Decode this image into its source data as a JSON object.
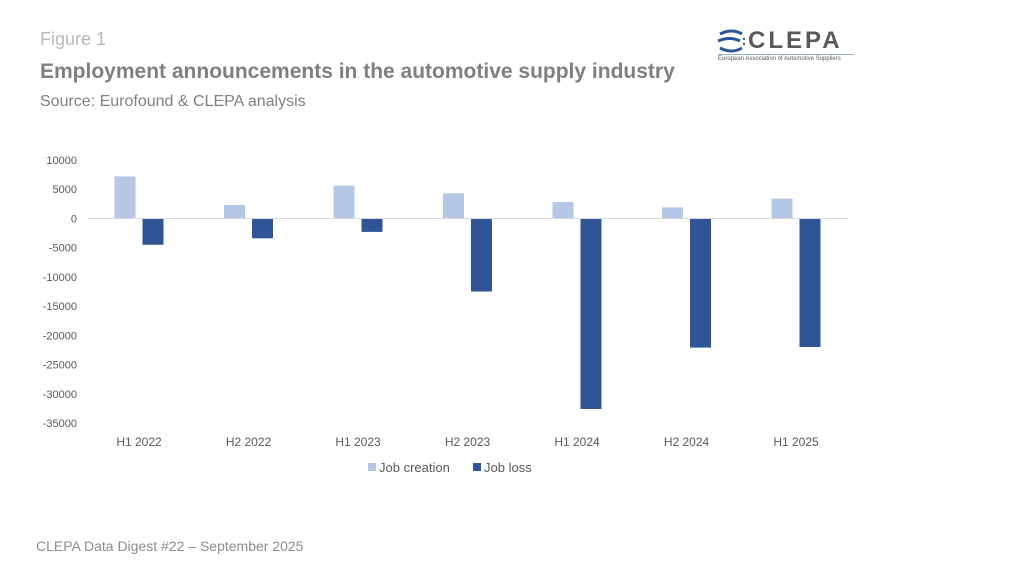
{
  "header": {
    "figure_label": "Figure 1",
    "title": "Employment announcements in the automotive supply industry",
    "subtitle": "Source: Eurofound & CLEPA analysis"
  },
  "logo": {
    "name": "CLEPA",
    "tagline": "European Association of Automotive Suppliers",
    "colors": {
      "text": "#595959",
      "accent": "#2e5597"
    }
  },
  "footer": "CLEPA Data Digest #22 – September 2025",
  "chart_data": {
    "type": "bar",
    "title": "Employment announcements in the automotive supply industry",
    "xlabel": "",
    "ylabel": "",
    "categories": [
      "H1 2022",
      "H2 2022",
      "H1 2023",
      "H2 2023",
      "H1 2024",
      "H2 2024",
      "H1 2025"
    ],
    "series": [
      {
        "name": "Job creation",
        "color": "#b4c7e7",
        "values": [
          7200,
          2300,
          5600,
          4300,
          2800,
          1900,
          3400
        ]
      },
      {
        "name": "Job loss",
        "color": "#2f5597",
        "values": [
          -4500,
          -3400,
          -2300,
          -12500,
          -32600,
          -22100,
          -22000
        ]
      }
    ],
    "ylim": [
      -35000,
      10000
    ],
    "yticks": [
      10000,
      5000,
      0,
      -5000,
      -10000,
      -15000,
      -20000,
      -25000,
      -30000,
      -35000
    ],
    "grid": false,
    "legend_position": "bottom"
  }
}
